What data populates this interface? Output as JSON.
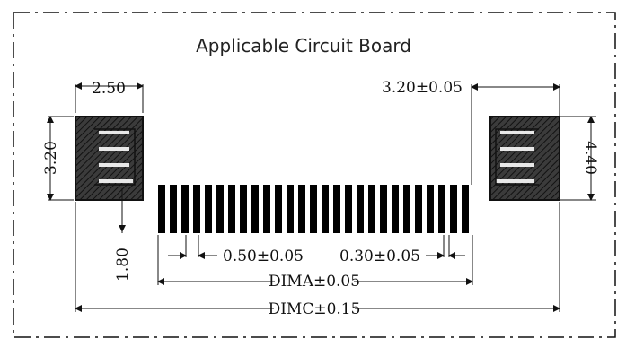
{
  "diagram": {
    "title": "Applicable Circuit Board",
    "dimensions": {
      "left_pad_width": "2.50",
      "left_pad_height": "3.20",
      "right_pad_offset": "3.20±0.05",
      "right_pad_height": "4.40",
      "pin_offset": "1.80",
      "pitch": "0.50±0.05",
      "pin_width": "0.30±0.05",
      "dim_a": "DIMA±0.05",
      "dim_c": "DIMC±0.15"
    }
  }
}
